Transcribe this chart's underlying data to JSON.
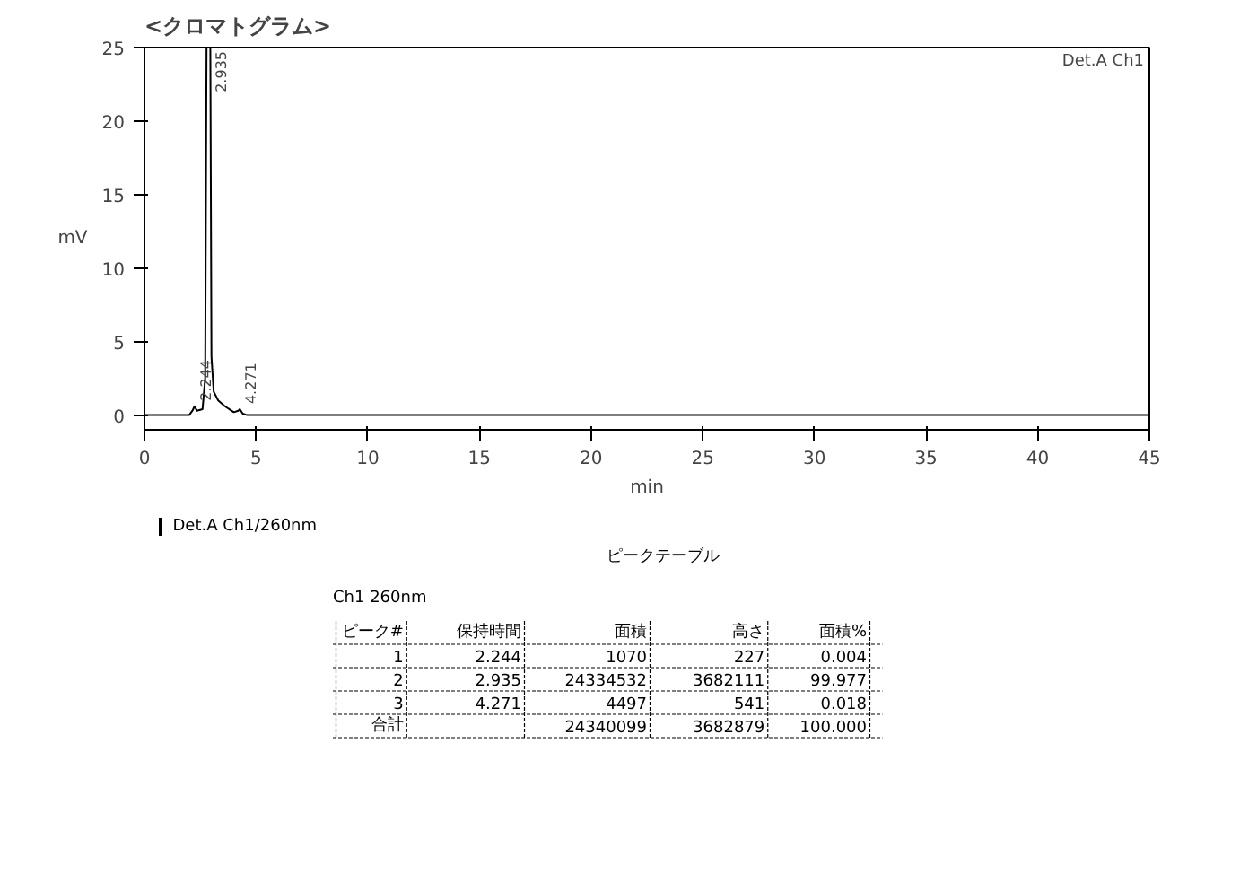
{
  "chart_data": {
    "type": "line",
    "title": "<クロマトグラム>",
    "xlabel": "min",
    "ylabel": "mV",
    "x": [
      0,
      2.0,
      2.15,
      2.244,
      2.35,
      2.6,
      2.72,
      2.78,
      2.85,
      2.95,
      3.0,
      3.1,
      3.3,
      3.6,
      4.0,
      4.2,
      4.271,
      4.4,
      4.6,
      45
    ],
    "series": [
      {
        "name": "Det.A Ch1/260nm",
        "color": "#000000",
        "values": [
          0,
          0,
          0.3,
          0.6,
          0.3,
          0.4,
          2.5,
          25,
          null,
          25,
          4,
          1.6,
          1.0,
          0.6,
          0.2,
          0.3,
          0.4,
          0.1,
          0,
          0
        ]
      }
    ],
    "xlim": [
      0,
      45
    ],
    "xticks": [
      0,
      5,
      10,
      15,
      20,
      25,
      30,
      35,
      40,
      45
    ],
    "ylim": [
      -1,
      25
    ],
    "yticks": [
      0,
      5,
      10,
      15,
      20,
      25
    ],
    "grid": false,
    "legend": "bottom left",
    "marker": "none",
    "line_style": "solid",
    "annotations": [
      "Det.A Ch1",
      {
        "text": "2.244",
        "x": 2.244,
        "y": 0.6
      },
      {
        "text": "2.935",
        "x": 2.935,
        "y": 25
      },
      {
        "text": "4.271",
        "x": 4.271,
        "y": 0.4
      },
      "ピークテーブル",
      "Ch1 260nm",
      "ピーク#\t保持時間\t面積\t高さ\t面積%",
      "1\t2.244\t1070\t227\t0.004",
      "2\t2.935\t24334532\t3682111\t99.977",
      "3\t4.271\t4497\t541\t0.018",
      "合計\t\t24340099\t3682879\t100.000"
    ]
  }
}
